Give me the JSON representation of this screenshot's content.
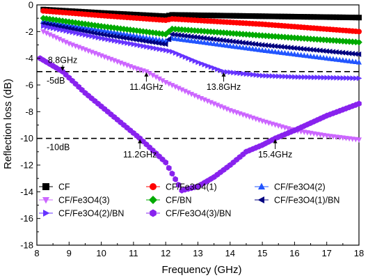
{
  "chart_data": {
    "type": "line",
    "xlabel": "Frequency (GHz)",
    "ylabel": "Reflection loss (dB)",
    "xlim": [
      8,
      18
    ],
    "ylim": [
      -18,
      0
    ],
    "xticks": [
      "8",
      "9",
      "10",
      "11",
      "12",
      "13",
      "14",
      "15",
      "16",
      "17",
      "18"
    ],
    "yticks": [
      "0",
      "-2",
      "-4",
      "-6",
      "-8",
      "-10",
      "-12",
      "-14",
      "-16",
      "-18"
    ],
    "grid": false,
    "legend_position": "bottom-left",
    "series": [
      {
        "name": "CF",
        "marker": "square",
        "color": "#000000",
        "x": [
          8.2,
          10,
          12,
          12.2,
          15,
          18
        ],
        "y": [
          -0.35,
          -0.6,
          -0.85,
          -0.75,
          -0.85,
          -0.95
        ]
      },
      {
        "name": "CF/Fe3O4(1)",
        "marker": "circle",
        "color": "#ff0000",
        "x": [
          8.2,
          10,
          12,
          12.2,
          15,
          18
        ],
        "y": [
          -0.45,
          -0.8,
          -1.15,
          -1.05,
          -1.45,
          -2.0
        ]
      },
      {
        "name": "CF/Fe3O4(2)",
        "marker": "triangle-up",
        "color": "#2255ff",
        "x": [
          8.2,
          10,
          12,
          12.2,
          15,
          18
        ],
        "y": [
          -1.2,
          -1.9,
          -2.7,
          -2.5,
          -3.4,
          -4.3
        ]
      },
      {
        "name": "CF/Fe3O4(3)",
        "marker": "triangle-down",
        "color": "#cc66ff",
        "x": [
          8.2,
          9,
          10,
          11,
          11.4,
          12,
          13,
          14,
          15,
          16,
          17,
          18
        ],
        "y": [
          -2.0,
          -2.9,
          -3.8,
          -4.7,
          -5.0,
          -5.8,
          -6.9,
          -7.9,
          -8.7,
          -9.4,
          -9.8,
          -10.1
        ]
      },
      {
        "name": "CF/BN",
        "marker": "diamond",
        "color": "#00aa00",
        "x": [
          8.2,
          10,
          12,
          12.2,
          15,
          18
        ],
        "y": [
          -1.0,
          -1.6,
          -2.2,
          -1.8,
          -2.3,
          -2.8
        ]
      },
      {
        "name": "CF/Fe3O4(1)/BN",
        "marker": "triangle-left",
        "color": "#000080",
        "x": [
          8.2,
          10,
          12,
          12.2,
          15,
          18
        ],
        "y": [
          -1.4,
          -2.2,
          -2.95,
          -2.2,
          -3.0,
          -3.7
        ]
      },
      {
        "name": "CF/Fe3O4(2)/BN",
        "marker": "triangle-right",
        "color": "#6633ff",
        "x": [
          8.2,
          10,
          12,
          12.2,
          13,
          13.8,
          15,
          16,
          17,
          18
        ],
        "y": [
          -1.6,
          -2.5,
          -3.4,
          -3.5,
          -4.3,
          -5.0,
          -5.3,
          -5.4,
          -5.45,
          -5.5
        ]
      },
      {
        "name": "CF/Fe3O4(3)/BN",
        "marker": "hexagon",
        "color": "#8822ee",
        "x": [
          8.1,
          8.8,
          9.5,
          10.5,
          11.2,
          12,
          12.5,
          13,
          13.5,
          14,
          14.5,
          15,
          15.4,
          16,
          17,
          18
        ],
        "y": [
          -4.0,
          -5.0,
          -6.6,
          -8.6,
          -10.0,
          -11.8,
          -13.9,
          -13.6,
          -12.9,
          -12.0,
          -11.0,
          -10.5,
          -10.0,
          -9.4,
          -8.3,
          -7.4
        ]
      }
    ],
    "reference_lines": [
      {
        "y": -5,
        "label": "-5dB"
      },
      {
        "y": -10,
        "label": "-10dB"
      }
    ],
    "annotations": [
      {
        "text": "8.8GHz",
        "x": 8.8,
        "y": -5
      },
      {
        "text": "11.4GHz",
        "x": 11.4,
        "y": -5
      },
      {
        "text": "13.8GHz",
        "x": 13.8,
        "y": -5
      },
      {
        "text": "11.2GHz",
        "x": 11.2,
        "y": -10
      },
      {
        "text": "15.4GHz",
        "x": 15.4,
        "y": -10
      }
    ]
  }
}
